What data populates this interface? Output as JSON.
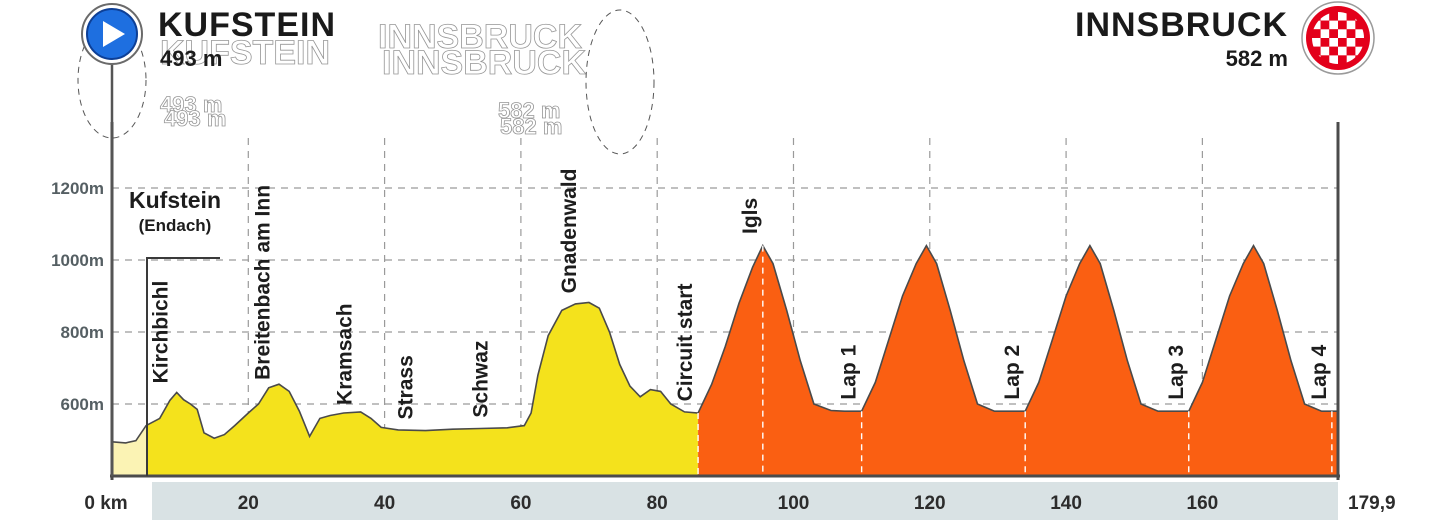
{
  "start": {
    "city": "KUFSTEIN",
    "altitude": "493 m",
    "icon": "play-icon"
  },
  "finish": {
    "city": "INNSBRUCK",
    "altitude": "582 m",
    "icon": "checkered-flag-icon"
  },
  "ghost": {
    "start_city": "KUFSTEIN",
    "start_alt": "493 m",
    "finish_city": "INNSBRUCK",
    "finish_alt": "582 m"
  },
  "start_label": {
    "line1": "Kufstein",
    "line2": "(Endach)"
  },
  "colors": {
    "flat_section": "#f4e21c",
    "circuit_section": "#fa5f12",
    "start_pad": "#fbf3b4",
    "profile_line": "#4a4a4a",
    "grid": "#9a9a9a",
    "x_band": "#d9e2e4",
    "finish_badge": "#e3001b"
  },
  "chart_data": {
    "type": "area",
    "title": "",
    "xlabel": "",
    "ylabel": "",
    "x_unit": "km",
    "xlim": [
      0,
      179.9
    ],
    "ylim": [
      400,
      1300
    ],
    "x_ticks": [
      {
        "value": 0,
        "label": "0 km"
      },
      {
        "value": 20,
        "label": "20"
      },
      {
        "value": 40,
        "label": "40"
      },
      {
        "value": 60,
        "label": "60"
      },
      {
        "value": 80,
        "label": "80"
      },
      {
        "value": 100,
        "label": "100"
      },
      {
        "value": 120,
        "label": "120"
      },
      {
        "value": 140,
        "label": "140"
      },
      {
        "value": 160,
        "label": "160"
      },
      {
        "value": 179.9,
        "label": "179,9"
      }
    ],
    "y_ticks": [
      {
        "value": 600,
        "label": "600m"
      },
      {
        "value": 800,
        "label": "800m"
      },
      {
        "value": 1000,
        "label": "1000m"
      },
      {
        "value": 1200,
        "label": "1200m"
      }
    ],
    "grid": true,
    "circuit_start_km": 86,
    "profile": [
      [
        0,
        495
      ],
      [
        2,
        492
      ],
      [
        3.5,
        498
      ],
      [
        5,
        540
      ],
      [
        7,
        560
      ],
      [
        8.5,
        610
      ],
      [
        9.5,
        632
      ],
      [
        10.5,
        612
      ],
      [
        11.5,
        600
      ],
      [
        12.5,
        585
      ],
      [
        13.5,
        520
      ],
      [
        15,
        505
      ],
      [
        16.5,
        515
      ],
      [
        18,
        540
      ],
      [
        20,
        575
      ],
      [
        21.5,
        600
      ],
      [
        23,
        645
      ],
      [
        24.5,
        655
      ],
      [
        26,
        635
      ],
      [
        27.5,
        580
      ],
      [
        29,
        510
      ],
      [
        30.5,
        560
      ],
      [
        32,
        568
      ],
      [
        34,
        575
      ],
      [
        36.5,
        578
      ],
      [
        38,
        560
      ],
      [
        39.5,
        535
      ],
      [
        42,
        528
      ],
      [
        46,
        526
      ],
      [
        50,
        530
      ],
      [
        54,
        532
      ],
      [
        58,
        534
      ],
      [
        60.5,
        540
      ],
      [
        61.5,
        575
      ],
      [
        62.5,
        680
      ],
      [
        64,
        790
      ],
      [
        66,
        860
      ],
      [
        68,
        878
      ],
      [
        70,
        882
      ],
      [
        71.5,
        866
      ],
      [
        73,
        800
      ],
      [
        74.5,
        710
      ],
      [
        76,
        650
      ],
      [
        77.5,
        620
      ],
      [
        79,
        640
      ],
      [
        80.5,
        635
      ],
      [
        82,
        600
      ],
      [
        84,
        578
      ],
      [
        86,
        575
      ],
      [
        88,
        655
      ],
      [
        90,
        760
      ],
      [
        92,
        880
      ],
      [
        94,
        980
      ],
      [
        95.5,
        1040
      ],
      [
        97,
        990
      ],
      [
        99,
        860
      ],
      [
        101,
        720
      ],
      [
        103,
        600
      ],
      [
        105.5,
        582
      ],
      [
        107.5,
        580
      ],
      [
        110,
        580
      ],
      [
        112,
        660
      ],
      [
        114,
        780
      ],
      [
        116,
        900
      ],
      [
        118,
        990
      ],
      [
        119.5,
        1040
      ],
      [
        121,
        990
      ],
      [
        123,
        860
      ],
      [
        125,
        720
      ],
      [
        127,
        600
      ],
      [
        129.5,
        580
      ],
      [
        132,
        580
      ],
      [
        134,
        580
      ],
      [
        136,
        660
      ],
      [
        138,
        780
      ],
      [
        140,
        900
      ],
      [
        142,
        990
      ],
      [
        143.5,
        1040
      ],
      [
        145,
        990
      ],
      [
        147,
        860
      ],
      [
        149,
        720
      ],
      [
        151,
        600
      ],
      [
        153.5,
        580
      ],
      [
        156,
        580
      ],
      [
        158,
        580
      ],
      [
        160,
        660
      ],
      [
        162,
        780
      ],
      [
        164,
        900
      ],
      [
        166,
        990
      ],
      [
        167.5,
        1040
      ],
      [
        169,
        990
      ],
      [
        171,
        860
      ],
      [
        173,
        720
      ],
      [
        175,
        600
      ],
      [
        177.5,
        580
      ],
      [
        179.9,
        580
      ]
    ],
    "annotations": [
      {
        "label": "Kirchbichl",
        "km": 9,
        "elev": 635
      },
      {
        "label": "Breitenbach am Inn",
        "km": 24,
        "elev": 645
      },
      {
        "label": "Kramsach",
        "km": 36,
        "elev": 575
      },
      {
        "label": "Strass",
        "km": 45,
        "elev": 535
      },
      {
        "label": "Schwaz",
        "km": 56,
        "elev": 540
      },
      {
        "label": "Gnadenwald",
        "km": 69,
        "elev": 885
      },
      {
        "label": "Circuit start",
        "km": 86,
        "elev": 585
      },
      {
        "label": "Igls",
        "km": 95.5,
        "elev": 1050
      },
      {
        "label": "Lap 1",
        "km": 110,
        "elev": 590
      },
      {
        "label": "Lap 2",
        "km": 134,
        "elev": 590
      },
      {
        "label": "Lap 3",
        "km": 158,
        "elev": 590
      },
      {
        "label": "Lap 4",
        "km": 179,
        "elev": 590
      }
    ]
  }
}
